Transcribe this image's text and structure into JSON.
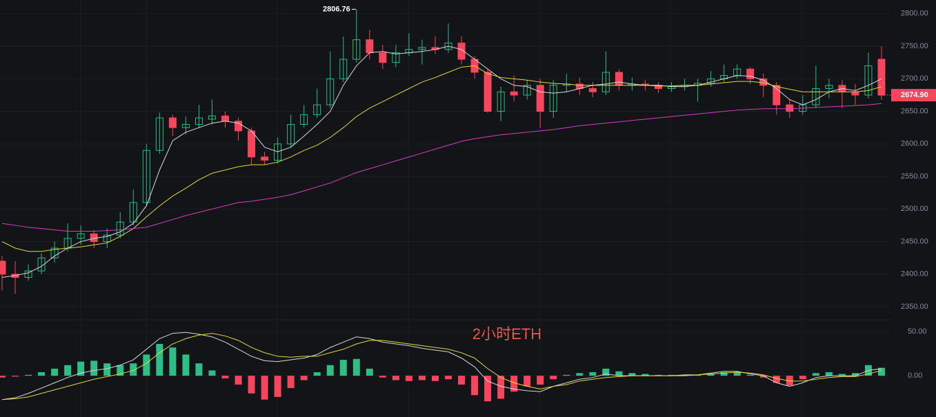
{
  "chart_data": {
    "type": "candlestick",
    "watermark": "2小时ETH",
    "colors": {
      "up": "#2ebd85",
      "down": "#f6465d"
    },
    "grid": true,
    "ylim": [
      2331,
      2821
    ],
    "yticks": [
      {
        "value": 2350,
        "label": "2350.00"
      },
      {
        "value": 2400,
        "label": "2400.00"
      },
      {
        "value": 2450,
        "label": "2450.00"
      },
      {
        "value": 2500,
        "label": "2500.00"
      },
      {
        "value": 2550,
        "label": "2550.00"
      },
      {
        "value": 2600,
        "label": "2600.00"
      },
      {
        "value": 2650,
        "label": "2650.00"
      },
      {
        "value": 2700,
        "label": "2700.00"
      },
      {
        "value": 2750,
        "label": "2750.00"
      },
      {
        "value": 2800,
        "label": "2800.00"
      }
    ],
    "high_annotation": 2806.76,
    "last_price": {
      "value": 2674.9,
      "label": "2674.90"
    },
    "candles": [
      [
        2420,
        2428,
        2375,
        2400
      ],
      [
        2400,
        2420,
        2370,
        2395
      ],
      [
        2395,
        2415,
        2390,
        2405
      ],
      [
        2405,
        2432,
        2400,
        2425
      ],
      [
        2425,
        2450,
        2418,
        2440
      ],
      [
        2440,
        2478,
        2435,
        2455
      ],
      [
        2455,
        2475,
        2445,
        2462
      ],
      [
        2462,
        2468,
        2440,
        2450
      ],
      [
        2450,
        2470,
        2440,
        2460
      ],
      [
        2460,
        2495,
        2455,
        2480
      ],
      [
        2480,
        2530,
        2475,
        2510
      ],
      [
        2510,
        2600,
        2505,
        2590
      ],
      [
        2590,
        2648,
        2585,
        2640
      ],
      [
        2640,
        2645,
        2612,
        2625
      ],
      [
        2625,
        2642,
        2615,
        2630
      ],
      [
        2630,
        2660,
        2625,
        2640
      ],
      [
        2638,
        2668,
        2630,
        2643
      ],
      [
        2643,
        2650,
        2625,
        2635
      ],
      [
        2635,
        2640,
        2605,
        2620
      ],
      [
        2620,
        2625,
        2568,
        2580
      ],
      [
        2580,
        2588,
        2568,
        2575
      ],
      [
        2575,
        2610,
        2570,
        2600
      ],
      [
        2600,
        2645,
        2595,
        2630
      ],
      [
        2630,
        2660,
        2625,
        2645
      ],
      [
        2645,
        2685,
        2640,
        2660
      ],
      [
        2660,
        2742,
        2655,
        2700
      ],
      [
        2700,
        2765,
        2695,
        2730
      ],
      [
        2730,
        2806.76,
        2725,
        2760
      ],
      [
        2760,
        2775,
        2730,
        2740
      ],
      [
        2740,
        2752,
        2715,
        2725
      ],
      [
        2725,
        2752,
        2718,
        2740
      ],
      [
        2740,
        2770,
        2735,
        2745
      ],
      [
        2745,
        2760,
        2722,
        2748
      ],
      [
        2748,
        2765,
        2738,
        2745
      ],
      [
        2745,
        2785,
        2740,
        2755
      ],
      [
        2755,
        2765,
        2722,
        2730
      ],
      [
        2730,
        2735,
        2700,
        2710
      ],
      [
        2710,
        2715,
        2648,
        2650
      ],
      [
        2650,
        2688,
        2635,
        2680
      ],
      [
        2680,
        2705,
        2665,
        2675
      ],
      [
        2675,
        2698,
        2668,
        2690
      ],
      [
        2690,
        2700,
        2625,
        2650
      ],
      [
        2650,
        2698,
        2640,
        2690
      ],
      [
        2690,
        2708,
        2680,
        2692
      ],
      [
        2692,
        2702,
        2675,
        2685
      ],
      [
        2685,
        2695,
        2672,
        2680
      ],
      [
        2680,
        2742,
        2675,
        2710
      ],
      [
        2710,
        2715,
        2682,
        2690
      ],
      [
        2690,
        2702,
        2682,
        2692
      ],
      [
        2692,
        2698,
        2682,
        2690
      ],
      [
        2690,
        2695,
        2678,
        2685
      ],
      [
        2685,
        2695,
        2680,
        2688
      ],
      [
        2688,
        2700,
        2682,
        2690
      ],
      [
        2690,
        2700,
        2665,
        2693
      ],
      [
        2693,
        2712,
        2688,
        2700
      ],
      [
        2700,
        2722,
        2695,
        2705
      ],
      [
        2705,
        2722,
        2700,
        2715
      ],
      [
        2715,
        2718,
        2692,
        2700
      ],
      [
        2700,
        2708,
        2672,
        2690
      ],
      [
        2690,
        2695,
        2645,
        2660
      ],
      [
        2660,
        2668,
        2640,
        2650
      ],
      [
        2650,
        2675,
        2645,
        2660
      ],
      [
        2660,
        2720,
        2655,
        2685
      ],
      [
        2685,
        2700,
        2670,
        2690
      ],
      [
        2690,
        2698,
        2655,
        2680
      ],
      [
        2680,
        2692,
        2660,
        2675
      ],
      [
        2675,
        2740,
        2670,
        2720
      ],
      [
        2730,
        2750,
        2668,
        2674.9
      ]
    ],
    "lines": [
      {
        "color": "#d9d9d9",
        "values": [
          2395,
          2398,
          2402,
          2412,
          2428,
          2440,
          2450,
          2455,
          2458,
          2465,
          2478,
          2505,
          2560,
          2605,
          2618,
          2625,
          2632,
          2635,
          2632,
          2620,
          2595,
          2588,
          2595,
          2612,
          2630,
          2650,
          2690,
          2720,
          2740,
          2742,
          2738,
          2740,
          2742,
          2745,
          2750,
          2745,
          2730,
          2715,
          2700,
          2690,
          2688,
          2680,
          2678,
          2680,
          2685,
          2690,
          2692,
          2695,
          2692,
          2690,
          2690,
          2688,
          2688,
          2690,
          2695,
          2700,
          2705,
          2704,
          2698,
          2685,
          2668,
          2660,
          2668,
          2680,
          2685,
          2682,
          2690,
          2700
        ]
      },
      {
        "color": "#e6d83a",
        "values": [
          2450,
          2440,
          2435,
          2435,
          2438,
          2440,
          2442,
          2445,
          2448,
          2458,
          2470,
          2488,
          2505,
          2520,
          2532,
          2545,
          2555,
          2560,
          2565,
          2568,
          2568,
          2572,
          2580,
          2590,
          2598,
          2610,
          2625,
          2642,
          2655,
          2665,
          2675,
          2685,
          2695,
          2702,
          2710,
          2718,
          2720,
          2708,
          2702,
          2700,
          2698,
          2695,
          2693,
          2692,
          2690,
          2690,
          2690,
          2690,
          2690,
          2690,
          2689,
          2689,
          2690,
          2690,
          2692,
          2694,
          2696,
          2696,
          2694,
          2688,
          2684,
          2680,
          2680,
          2680,
          2680,
          2680,
          2682,
          2688
        ]
      },
      {
        "color": "#d63fc0",
        "values": [
          2478,
          2475,
          2472,
          2470,
          2468,
          2466,
          2466,
          2466,
          2467,
          2468,
          2470,
          2472,
          2478,
          2484,
          2490,
          2495,
          2500,
          2505,
          2510,
          2512,
          2515,
          2518,
          2522,
          2528,
          2534,
          2540,
          2548,
          2556,
          2562,
          2568,
          2574,
          2580,
          2586,
          2592,
          2598,
          2604,
          2608,
          2611,
          2614,
          2616,
          2618,
          2620,
          2622,
          2625,
          2628,
          2630,
          2632,
          2634,
          2636,
          2638,
          2640,
          2642,
          2644,
          2646,
          2648,
          2650,
          2652,
          2653,
          2654,
          2654,
          2654,
          2655,
          2656,
          2657,
          2658,
          2659,
          2660,
          2662
        ]
      }
    ],
    "macd": {
      "ylim": [
        -35,
        62.5
      ],
      "yticks": [
        {
          "value": 50,
          "label": "50.00"
        },
        {
          "value": 0,
          "label": "0.00"
        }
      ],
      "histogram": [
        -2,
        -1,
        1,
        4,
        8,
        12,
        16,
        17,
        14,
        12,
        14,
        24,
        36,
        32,
        24,
        14,
        6,
        -3,
        -10,
        -20,
        -27,
        -24,
        -14,
        -5,
        4,
        12,
        18,
        19,
        8,
        -2,
        -5,
        -6,
        -5,
        -6,
        -4,
        -10,
        -22,
        -29,
        -26,
        -18,
        -12,
        -10,
        -4,
        1,
        3,
        4,
        8,
        5,
        3,
        2,
        1,
        1,
        1,
        1,
        2,
        4,
        4,
        1,
        -2,
        -8,
        -11,
        -4,
        3,
        4,
        2,
        3,
        12,
        9
      ],
      "lines": [
        {
          "color": "#d9d9d9",
          "values": [
            -27,
            -25,
            -20,
            -14,
            -8,
            -2,
            3,
            6,
            8,
            12,
            18,
            30,
            42,
            48,
            49,
            47,
            44,
            38,
            30,
            22,
            17,
            16,
            18,
            20,
            24,
            32,
            38,
            44,
            42,
            38,
            36,
            34,
            31,
            29,
            27,
            20,
            10,
            -6,
            -12,
            -15,
            -17,
            -18,
            -12,
            -8,
            -4,
            -2,
            2,
            0,
            0,
            0,
            0,
            0,
            1,
            1,
            3,
            5,
            5,
            2,
            0,
            -8,
            -12,
            -8,
            -2,
            0,
            0,
            0,
            6,
            8
          ]
        },
        {
          "color": "#e6d83a",
          "values": [
            -27,
            -26,
            -24,
            -20,
            -16,
            -12,
            -8,
            -4,
            -1,
            2,
            6,
            14,
            26,
            36,
            42,
            46,
            48,
            45,
            40,
            32,
            26,
            22,
            21,
            22,
            22,
            26,
            30,
            36,
            40,
            40,
            38,
            36,
            34,
            32,
            30,
            26,
            20,
            8,
            -2,
            -8,
            -12,
            -15,
            -12,
            -10,
            -6,
            -4,
            -2,
            -1,
            0,
            0,
            0,
            0,
            0,
            1,
            2,
            3,
            4,
            3,
            1,
            -3,
            -6,
            -6,
            -4,
            -2,
            -1,
            -1,
            2,
            6
          ]
        }
      ]
    }
  }
}
